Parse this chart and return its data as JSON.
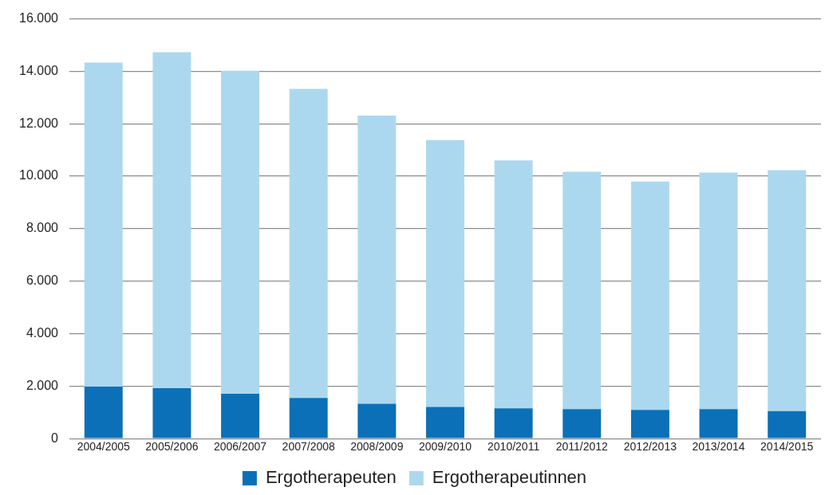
{
  "chart_data": {
    "type": "bar",
    "stacked": true,
    "categories": [
      "2004/2005",
      "2005/2006",
      "2006/2007",
      "2007/2008",
      "2008/2009",
      "2009/2010",
      "2010/2011",
      "2011/2012",
      "2012/2013",
      "2013/2014",
      "2014/2015"
    ],
    "series": [
      {
        "name": "Ergotherapeuten",
        "color": "#0b70b8",
        "values": [
          1980,
          1920,
          1710,
          1550,
          1330,
          1210,
          1150,
          1120,
          1090,
          1120,
          1050
        ]
      },
      {
        "name": "Ergotherapeutinnen",
        "color": "#acd8ef",
        "values": [
          12350,
          12810,
          12310,
          11780,
          10980,
          10170,
          9450,
          9050,
          8710,
          9020,
          9180
        ]
      }
    ],
    "ylim": [
      0,
      16000
    ],
    "yticks": [
      {
        "value": 0,
        "label": "0"
      },
      {
        "value": 2000,
        "label": "2.000"
      },
      {
        "value": 4000,
        "label": "4.000"
      },
      {
        "value": 6000,
        "label": "6.000"
      },
      {
        "value": 8000,
        "label": "8.000"
      },
      {
        "value": 10000,
        "label": "10.000"
      },
      {
        "value": 12000,
        "label": "12.000"
      },
      {
        "value": 14000,
        "label": "14.000"
      },
      {
        "value": 16000,
        "label": "16.000"
      }
    ],
    "grid": "y",
    "legend": "bottom"
  }
}
